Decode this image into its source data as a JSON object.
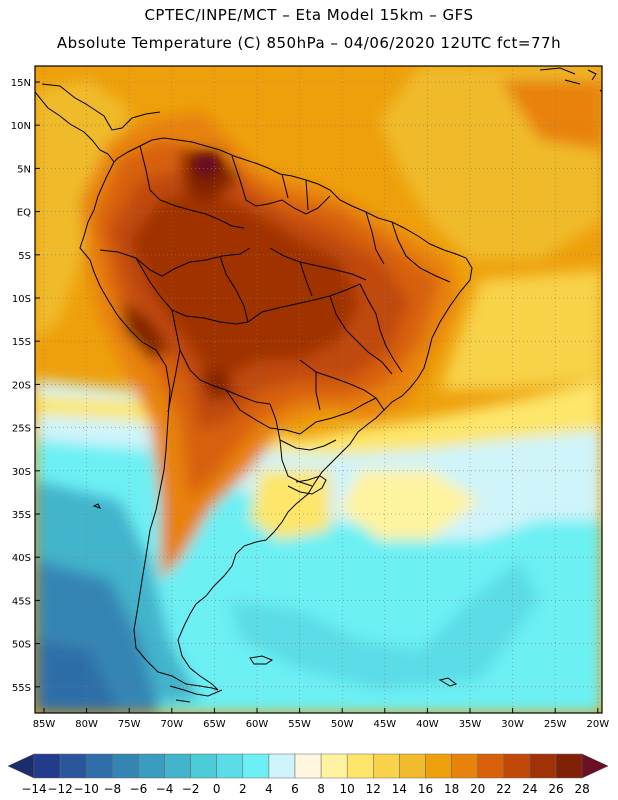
{
  "header": {
    "line1": "CPTEC/INPE/MCT –  Eta Model 15km – GFS",
    "line2": "Absolute Temperature (C) 850hPa – 04/06/2020 12UTC fct=77h"
  },
  "map": {
    "lat_labels": [
      "15N",
      "10N",
      "5N",
      "EQ",
      "5S",
      "10S",
      "15S",
      "20S",
      "25S",
      "30S",
      "35S",
      "40S",
      "45S",
      "50S",
      "55S"
    ],
    "lon_labels": [
      "85W",
      "80W",
      "75W",
      "70W",
      "65W",
      "60W",
      "55W",
      "50W",
      "45W",
      "40W",
      "35W",
      "30W",
      "25W",
      "20W"
    ]
  },
  "colorbar": {
    "labels": [
      "-14",
      "-12",
      "-10",
      "-8",
      "-6",
      "-4",
      "-2",
      "0",
      "2",
      "4",
      "6",
      "8",
      "10",
      "12",
      "14",
      "16",
      "18",
      "20",
      "22",
      "24",
      "26",
      "28"
    ],
    "colors": [
      "#223c8c",
      "#2a579c",
      "#2f6ea8",
      "#3485b4",
      "#3a9cc0",
      "#42b4cc",
      "#4ccbd8",
      "#5cdce6",
      "#6cf0f4",
      "#cff4fa",
      "#fff7e0",
      "#fff3a0",
      "#fde66a",
      "#f8d24a",
      "#f0bb2c",
      "#eea00c",
      "#e8820a",
      "#d8600a",
      "#c04808",
      "#a03206",
      "#802004"
    ],
    "left_cap": "#1c2d6e",
    "right_cap": "#6a1024"
  }
}
